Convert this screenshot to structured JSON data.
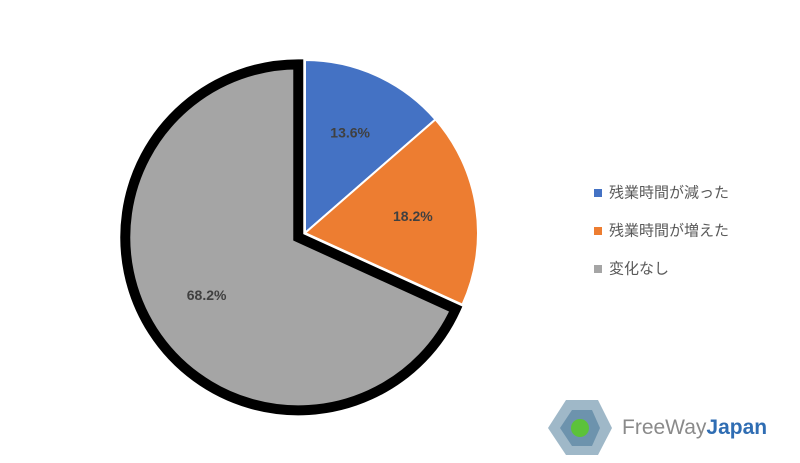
{
  "chart_data": {
    "type": "pie",
    "categories": [
      "残業時間が減った",
      "残業時間が増えた",
      "変化なし"
    ],
    "values": [
      13.6,
      18.2,
      68.2
    ],
    "value_labels": [
      "13.6%",
      "18.2%",
      "68.2%"
    ],
    "colors": [
      "#4472c4",
      "#ed7d31",
      "#a5a5a5"
    ],
    "legend": "right"
  },
  "logo": {
    "part1": "FreeWay",
    "part2": "Japan"
  }
}
